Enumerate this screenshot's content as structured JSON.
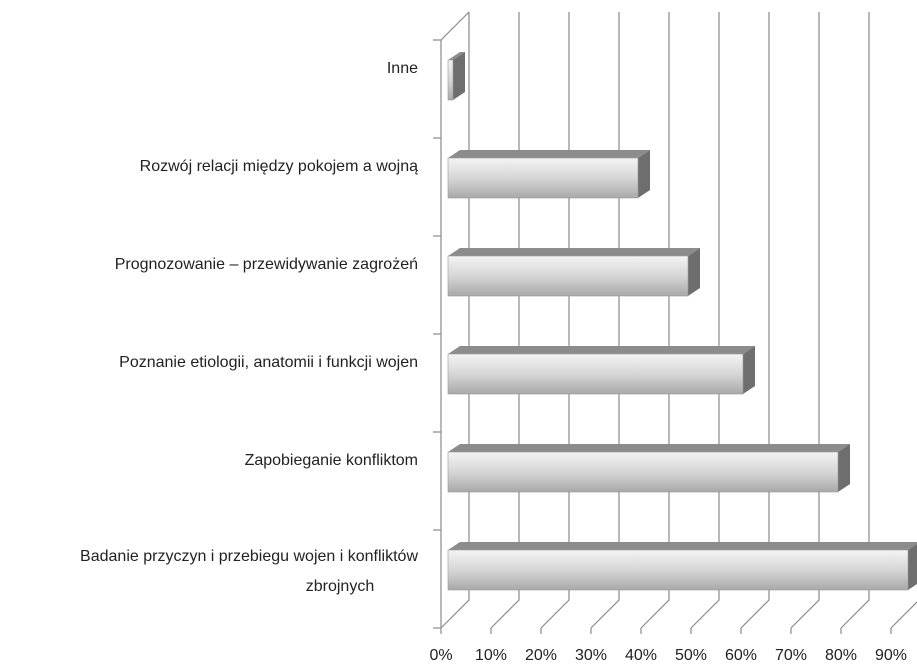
{
  "chart_data": {
    "type": "bar3d_horizontal",
    "categories": [
      "Inne",
      "Rozwój relacji między pokojem a wojną",
      "Prognozowanie – przewidywanie zagrożeń",
      "Poznanie etiologii, anatomii i funkcji wojen",
      "Zapobieganie konfliktom",
      "Badanie przyczyn i przebiegu wojen i konfliktów zbrojnych"
    ],
    "values": [
      1,
      38,
      48,
      59,
      78,
      92
    ],
    "color": "#c8c8c8",
    "xlim": [
      0,
      90
    ],
    "xticks": [
      {
        "value": 0,
        "label": "0%"
      },
      {
        "value": 10,
        "label": "10%"
      },
      {
        "value": 20,
        "label": "20%"
      },
      {
        "value": 30,
        "label": "30%"
      },
      {
        "value": 40,
        "label": "40%"
      },
      {
        "value": 50,
        "label": "50%"
      },
      {
        "value": 60,
        "label": "60%"
      },
      {
        "value": 70,
        "label": "70%"
      },
      {
        "value": 80,
        "label": "80%"
      },
      {
        "value": 90,
        "label": "90%"
      }
    ],
    "grid": true
  }
}
